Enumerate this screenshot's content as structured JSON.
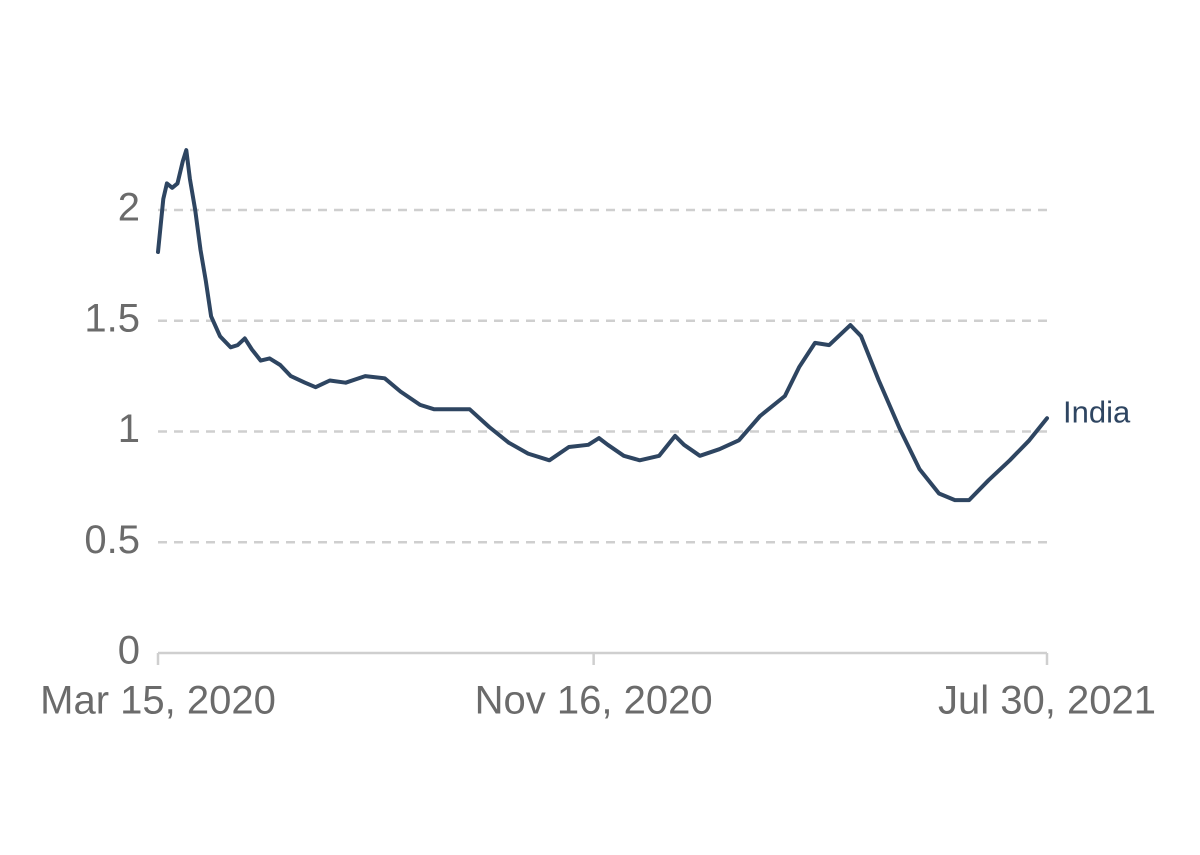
{
  "chart_data": {
    "type": "line",
    "x": [
      "2020-03-15",
      "2020-03-18",
      "2020-03-20",
      "2020-03-23",
      "2020-03-26",
      "2020-03-29",
      "2020-03-31",
      "2020-04-02",
      "2020-04-05",
      "2020-04-08",
      "2020-04-11",
      "2020-04-14",
      "2020-04-19",
      "2020-04-25",
      "2020-04-29",
      "2020-05-03",
      "2020-05-07",
      "2020-05-12",
      "2020-05-17",
      "2020-05-23",
      "2020-05-29",
      "2020-06-06",
      "2020-06-12",
      "2020-06-20",
      "2020-06-29",
      "2020-07-10",
      "2020-07-21",
      "2020-07-30",
      "2020-08-10",
      "2020-08-18",
      "2020-09-07",
      "2020-09-18",
      "2020-09-29",
      "2020-10-10",
      "2020-10-22",
      "2020-11-02",
      "2020-11-13",
      "2020-11-19",
      "2020-11-24",
      "2020-12-03",
      "2020-12-12",
      "2020-12-23",
      "2021-01-01",
      "2021-01-06",
      "2021-01-15",
      "2021-01-26",
      "2021-02-06",
      "2021-02-18",
      "2021-03-04",
      "2021-03-12",
      "2021-03-21",
      "2021-03-29",
      "2021-04-10",
      "2021-04-16",
      "2021-04-26",
      "2021-05-08",
      "2021-05-19",
      "2021-05-30",
      "2021-06-08",
      "2021-06-16",
      "2021-06-27",
      "2021-07-09",
      "2021-07-20",
      "2021-07-30"
    ],
    "series": [
      {
        "name": "India",
        "color": "#2e4561",
        "values": [
          1.81,
          2.05,
          2.12,
          2.1,
          2.12,
          2.22,
          2.27,
          2.14,
          2.0,
          1.82,
          1.68,
          1.52,
          1.43,
          1.38,
          1.39,
          1.42,
          1.37,
          1.32,
          1.33,
          1.3,
          1.25,
          1.22,
          1.2,
          1.23,
          1.22,
          1.25,
          1.24,
          1.18,
          1.12,
          1.1,
          1.1,
          1.02,
          0.95,
          0.9,
          0.87,
          0.93,
          0.94,
          0.97,
          0.94,
          0.89,
          0.87,
          0.89,
          0.98,
          0.94,
          0.89,
          0.92,
          0.96,
          1.07,
          1.16,
          1.29,
          1.4,
          1.39,
          1.48,
          1.43,
          1.23,
          1.01,
          0.83,
          0.72,
          0.69,
          0.69,
          0.78,
          0.87,
          0.96,
          1.06
        ]
      }
    ],
    "xlim": [
      "2020-03-15",
      "2021-07-30"
    ],
    "xticks": [
      {
        "value": "2020-03-15",
        "label": "Mar 15, 2020"
      },
      {
        "value": "2020-11-16",
        "label": "Nov 16, 2020"
      },
      {
        "value": "2021-07-30",
        "label": "Jul 30, 2021"
      }
    ],
    "ylim": [
      0,
      2.3
    ],
    "yticks": [
      0,
      0.5,
      1,
      1.5,
      2
    ],
    "grid": true
  }
}
